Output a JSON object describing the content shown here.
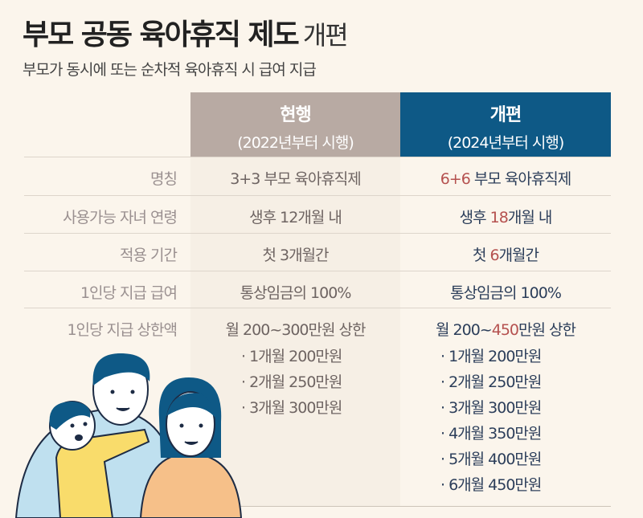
{
  "header": {
    "title_bold": "부모 공동 육아휴직 제도",
    "title_light": "개편",
    "subtitle": "부모가 동시에 또는 순차적 육아휴직 시 급여 지급"
  },
  "columns": {
    "current": {
      "title": "현행",
      "period": "(2022년부터 시행)",
      "color": "#b8aaa3"
    },
    "new": {
      "title": "개편",
      "period": "(2024년부터 시행)",
      "color": "#0e5986"
    }
  },
  "highlight_color": "#b5514f",
  "rows": [
    {
      "label": "명칭",
      "current": "3+3 부모 육아휴직제",
      "new_hl": "6+6",
      "new_rest": " 부모 육아휴직제"
    },
    {
      "label": "사용가능 자녀 연령",
      "current": "생후 12개월 내",
      "new_pre": "생후 ",
      "new_hl": "18",
      "new_rest": "개월 내"
    },
    {
      "label": "적용 기간",
      "current": "첫 3개월간",
      "new_pre": "첫 ",
      "new_hl": "6",
      "new_rest": "개월간"
    },
    {
      "label": "1인당 지급 급여",
      "current": "통상임금의 100%",
      "new": "통상임금의 100%"
    },
    {
      "label": "1인당 지급 상한액",
      "current": "월 200~300만원 상한",
      "new_pre": "월 200~",
      "new_hl": "450",
      "new_rest": "만원 상한"
    }
  ],
  "current_breakdown": [
    "· 1개월 200만원",
    "· 2개월 250만원",
    "· 3개월 300만원"
  ],
  "new_breakdown": [
    "· 1개월 200만원",
    "· 2개월 250만원",
    "· 3개월 300만원",
    "· 4개월 350만원",
    "· 5개월 400만원",
    "· 6개월 450만원"
  ]
}
